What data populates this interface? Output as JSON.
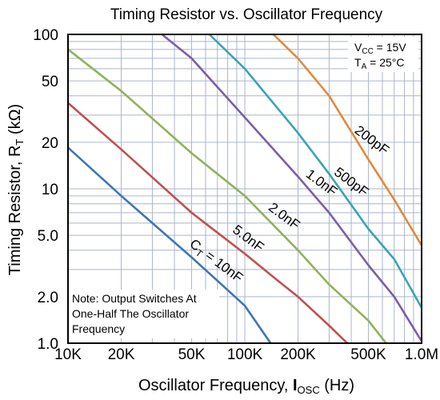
{
  "chart_data": {
    "type": "line",
    "title": "Timing Resistor vs. Oscillator Frequency",
    "xlabel": "Oscillator Frequency, I_OSC (Hz)",
    "xlabel_parts": {
      "pre": "Oscillator Frequency, ",
      "main": "I",
      "sub": "OSC",
      "post": " (Hz)"
    },
    "ylabel": "Timing Resistor, R_T (kΩ)",
    "ylabel_parts": {
      "pre": "Timing Resistor, R",
      "sub": "T",
      "post": " (kΩ)"
    },
    "xscale": "log",
    "yscale": "log",
    "xlim": [
      10000,
      1000000
    ],
    "ylim": [
      1.0,
      100
    ],
    "grid": true,
    "x_ticks": [
      {
        "value": 10000,
        "label": "10K"
      },
      {
        "value": 20000,
        "label": "20K"
      },
      {
        "value": 50000,
        "label": "50K"
      },
      {
        "value": 100000,
        "label": "100K"
      },
      {
        "value": 200000,
        "label": "200K"
      },
      {
        "value": 500000,
        "label": "500K"
      },
      {
        "value": 1000000,
        "label": "1.0M"
      }
    ],
    "y_ticks": [
      {
        "value": 100,
        "label": "100"
      },
      {
        "value": 50,
        "label": "50"
      },
      {
        "value": 20,
        "label": "20"
      },
      {
        "value": 10,
        "label": "10"
      },
      {
        "value": 5,
        "label": "5.0"
      },
      {
        "value": 2,
        "label": "2.0"
      },
      {
        "value": 1,
        "label": "1.0"
      }
    ],
    "conditions": [
      {
        "pre": "V",
        "sub": "CC",
        "post": " = 15V"
      },
      {
        "pre": "T",
        "sub": "A",
        "post": " = 25°C"
      }
    ],
    "note_lines": [
      "Note: Output Switches At",
      "One-Half The Oscillator",
      "Frequency"
    ],
    "series": [
      {
        "label": "200pF",
        "label_pre": "200pF",
        "label_sub": "",
        "label_post": "",
        "color": "#e08a3c",
        "points": [
          [
            145000,
            100
          ],
          [
            200000,
            70
          ],
          [
            300000,
            40
          ],
          [
            500000,
            15.5
          ],
          [
            700000,
            8.5
          ],
          [
            1000000,
            4.3
          ]
        ]
      },
      {
        "label": "500pF",
        "label_pre": "500pF",
        "label_sub": "",
        "label_post": "",
        "color": "#3aa3b8",
        "points": [
          [
            63000,
            100
          ],
          [
            100000,
            60
          ],
          [
            200000,
            23
          ],
          [
            300000,
            12.5
          ],
          [
            500000,
            5.5
          ],
          [
            700000,
            3.5
          ],
          [
            1000000,
            1.7
          ]
        ]
      },
      {
        "label": "1.0nF",
        "label_pre": "1.0nF",
        "label_sub": "",
        "label_post": "",
        "color": "#7b5ea7",
        "points": [
          [
            34000,
            100
          ],
          [
            50000,
            70
          ],
          [
            100000,
            29
          ],
          [
            200000,
            12
          ],
          [
            300000,
            7
          ],
          [
            500000,
            3.2
          ],
          [
            700000,
            2
          ],
          [
            1000000,
            1.03
          ]
        ]
      },
      {
        "label": "2.0nF",
        "label_pre": "2.0nF",
        "label_sub": "",
        "label_post": "",
        "color": "#8eb35a",
        "points": [
          [
            10000,
            80
          ],
          [
            20000,
            43
          ],
          [
            50000,
            17
          ],
          [
            100000,
            9
          ],
          [
            200000,
            4
          ],
          [
            300000,
            2.4
          ],
          [
            500000,
            1.4
          ],
          [
            630000,
            1.0
          ]
        ]
      },
      {
        "label": "5.0nF",
        "label_pre": "5.0nF",
        "label_sub": "",
        "label_post": "",
        "color": "#c0504d",
        "points": [
          [
            10000,
            36
          ],
          [
            20000,
            18
          ],
          [
            50000,
            7
          ],
          [
            100000,
            3.8
          ],
          [
            150000,
            2.6
          ],
          [
            200000,
            2.0
          ],
          [
            300000,
            1.3
          ],
          [
            380000,
            1.0
          ]
        ]
      },
      {
        "label": "C_T = 10nF",
        "label_pre": "C",
        "label_sub": "T",
        "label_post": " = 10nF",
        "color": "#3f75b5",
        "points": [
          [
            10000,
            18.5
          ],
          [
            20000,
            9
          ],
          [
            50000,
            3.6
          ],
          [
            100000,
            1.75
          ],
          [
            140000,
            1.0
          ]
        ]
      }
    ]
  }
}
